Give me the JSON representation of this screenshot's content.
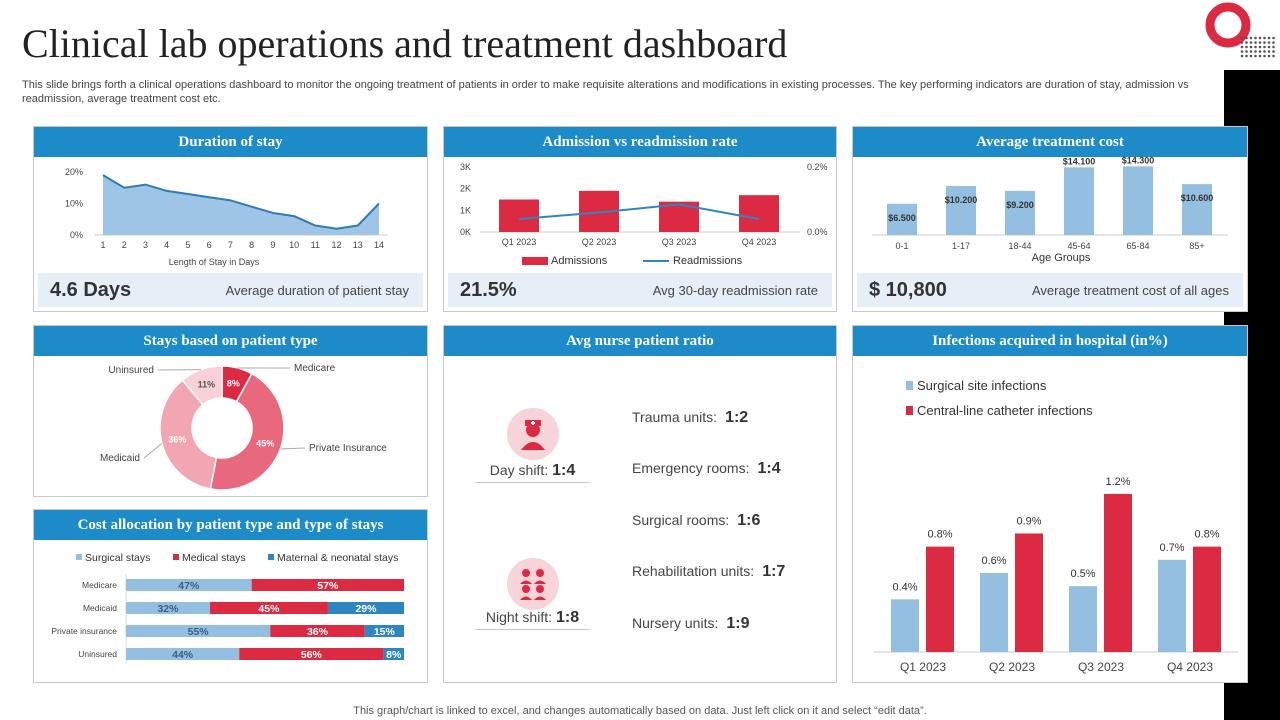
{
  "title": "Clinical lab operations and treatment dashboard",
  "description": "This slide brings forth a clinical operations dashboard to monitor the ongoing treatment of patients in order to make requisite alterations and modifications in existing processes. The key performing indicators are duration of stay, admission vs readmission, average treatment cost etc.",
  "footer": "This graph/chart is linked to excel, and changes automatically based on data. Just left click on it and select “edit data”.",
  "colors": {
    "header": "#1e8bc9",
    "red": "#dc2a42",
    "lightblue": "#94bfe0",
    "blue": "#2e86c1"
  },
  "panels": {
    "duration": {
      "title": "Duration of stay",
      "kpi": "4.6 Days",
      "kpi_label": "Average duration of patient stay"
    },
    "admission": {
      "title": "Admission vs readmission rate",
      "kpi": "21.5%",
      "kpi_label": "Avg 30-day readmission rate"
    },
    "cost": {
      "title": "Average treatment cost",
      "kpi": "$ 10,800",
      "kpi_label": "Average treatment cost of all ages"
    },
    "stays": {
      "title": "Stays based on patient type"
    },
    "allocation": {
      "title": "Cost allocation by patient type and type of stays"
    },
    "nurse": {
      "title": "Avg nurse patient ratio",
      "shifts": [
        {
          "label": "Day shift:",
          "value": "1:4",
          "icon": "nurse-icon"
        },
        {
          "label": "Night shift:",
          "value": "1:8",
          "icon": "nurse-group-icon"
        }
      ],
      "units": [
        {
          "label": "Trauma units:",
          "value": "1:2"
        },
        {
          "label": "Emergency rooms:",
          "value": "1:4"
        },
        {
          "label": "Surgical rooms:",
          "value": "1:6"
        },
        {
          "label": "Rehabilitation units:",
          "value": "1:7"
        },
        {
          "label": "Nursery units:",
          "value": "1:9"
        }
      ]
    },
    "infections": {
      "title": "Infections acquired in hospital (in%)"
    }
  },
  "chart_data": [
    {
      "id": "duration",
      "type": "area",
      "x": [
        "1",
        "2",
        "3",
        "4",
        "5",
        "6",
        "7",
        "8",
        "9",
        "10",
        "11",
        "12",
        "13",
        "14"
      ],
      "values": [
        19,
        15,
        16,
        14,
        13,
        12,
        11,
        9,
        7,
        6,
        3,
        2,
        3,
        10
      ],
      "xlabel": "Length of Stay in Days",
      "yticks": [
        "0%",
        "10%",
        "20%"
      ],
      "ylim": [
        0,
        20
      ]
    },
    {
      "id": "admission",
      "type": "bar+line",
      "categories": [
        "Q1 2023",
        "Q2 2023",
        "Q3 2023",
        "Q4 2023"
      ],
      "series": [
        {
          "name": "Admissions",
          "type": "bar",
          "values": [
            1500,
            1900,
            1400,
            1700
          ]
        },
        {
          "name": "Readmissions",
          "type": "line",
          "axis": "right",
          "values": [
            0.04,
            0.06,
            0.085,
            0.04
          ]
        }
      ],
      "yticks_left": [
        "0K",
        "1K",
        "2K",
        "3K"
      ],
      "ylim_left": [
        0,
        3000
      ],
      "yticks_right": [
        "0.0%",
        "0.2%"
      ],
      "ylim_right": [
        0,
        0.2
      ],
      "legend": "bottom"
    },
    {
      "id": "cost",
      "type": "bar",
      "categories": [
        "0-1",
        "1-17",
        "18-44",
        "45-64",
        "65-84",
        "85+"
      ],
      "values": [
        6500,
        10200,
        9200,
        14100,
        14300,
        10600
      ],
      "labels": [
        "$6.500",
        "$10.200",
        "$9.200",
        "$14.100",
        "$14.300",
        "$10.600"
      ],
      "xlabel": "Age Groups",
      "ylim": [
        0,
        15000
      ]
    },
    {
      "id": "stays",
      "type": "pie",
      "donut": true,
      "slices": [
        {
          "name": "Medicare",
          "value": 8,
          "label": "8%"
        },
        {
          "name": "Private Insurance",
          "value": 45,
          "label": "45%"
        },
        {
          "name": "Medicaid",
          "value": 36,
          "label": "36%"
        },
        {
          "name": "Uninsured",
          "value": 11,
          "label": "11%"
        }
      ]
    },
    {
      "id": "allocation",
      "type": "stacked-bar",
      "orientation": "horizontal",
      "categories": [
        "Medicare",
        "Medicaid",
        "Private insurance",
        "Uninsured"
      ],
      "series": [
        {
          "name": "Surgical stays",
          "values": [
            47,
            32,
            55,
            44
          ]
        },
        {
          "name": "Medical stays",
          "values": [
            57,
            45,
            36,
            56
          ]
        },
        {
          "name": "Maternal & neonatal stays",
          "values": [
            0,
            29,
            15,
            8
          ]
        }
      ],
      "legend": "top"
    },
    {
      "id": "infections",
      "type": "bar",
      "categories": [
        "Q1 2023",
        "Q2 2023",
        "Q3 2023",
        "Q4 2023"
      ],
      "series": [
        {
          "name": "Surgical site infections",
          "values": [
            0.4,
            0.6,
            0.5,
            0.7
          ]
        },
        {
          "name": "Central-line catheter infections",
          "values": [
            0.8,
            0.9,
            1.2,
            0.8
          ]
        }
      ],
      "legend": "top-left"
    }
  ]
}
